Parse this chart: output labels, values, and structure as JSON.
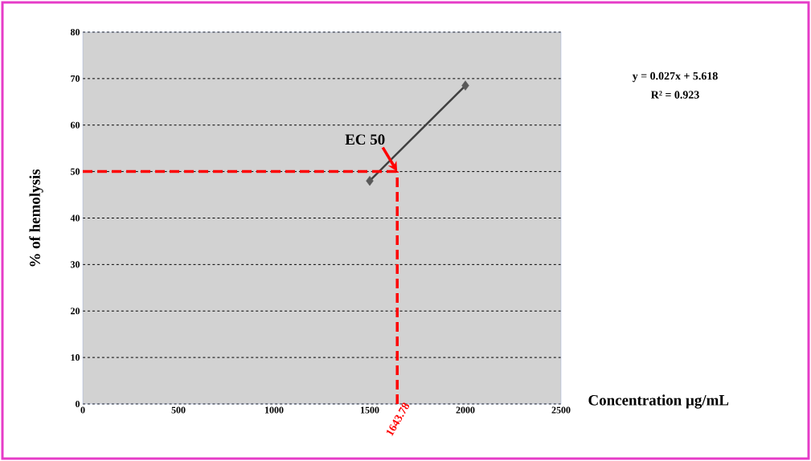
{
  "chart_data": {
    "type": "scatter",
    "xlabel": "Concentration µg/mL",
    "ylabel": "% of hemolysis",
    "xlim": [
      0,
      2500
    ],
    "xticks": [
      0,
      500,
      1000,
      1500,
      2000,
      2500
    ],
    "ylim": [
      0,
      80
    ],
    "yticks": [
      0,
      10,
      20,
      30,
      40,
      50,
      60,
      70,
      80
    ],
    "grid": "y",
    "x": [
      1500,
      2000
    ],
    "marker": "diamond",
    "series": [
      {
        "color": "#595959",
        "values": [
          48,
          68.5
        ]
      },
      {
        "type": "line",
        "marker": "none",
        "color": "#404040",
        "values": [
          48,
          68.5
        ]
      }
    ],
    "ref_lines": [
      {
        "axis": "y",
        "value": 50,
        "color": "#ff0000",
        "line_style": "dashed"
      },
      {
        "axis": "x",
        "value": 1643.78,
        "label": "1643.78",
        "color": "#ff0000",
        "line_style": "dashed"
      }
    ],
    "annotations": [
      {
        "text": "EC 50",
        "x": 1643.78,
        "y": 50
      },
      "y = 0.027x + 5.618",
      "R² = 0.923"
    ]
  }
}
